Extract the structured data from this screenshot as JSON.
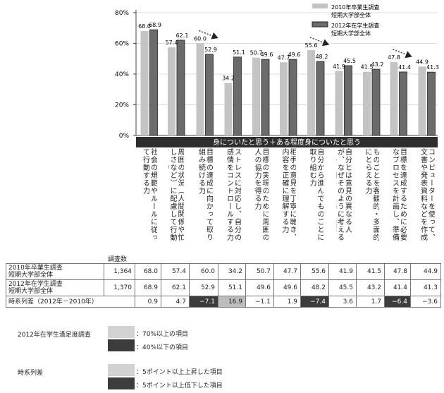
{
  "chart_data": {
    "type": "bar",
    "yticks": [
      "80%",
      "60%",
      "40%",
      "20%",
      "0%"
    ],
    "ylim": [
      0,
      80
    ],
    "band_title": "身についたと思う＋ある程度身についたと思う",
    "categories": [
      "社会の規範やルールに従って行動する力",
      "周囲の状況（人間関係や忙しさなど）に配慮して行動する力",
      "目標の達成に向かって取り組み続ける力",
      "ストレスに対応し、自分の感情をコントロールする力",
      "目標の実現のために周囲の人の協力を得る力",
      "相手の意見を丁寧に聴き、内容を正確に理解する力",
      "自分から進んでものごとに取り組む力",
      "自分とは意見の異なる人が、なぜそのように考えるのかを相手の立場で理解する力",
      "ものごとを客観的・多面的にとらえる力",
      "目標を達成するために必要なプロセスを計画し、準備する力",
      "コンピューターを使って、文書や発表資料などを作成する力"
    ],
    "series": [
      {
        "name": "2010年卒業生調査 短期大学部全体",
        "label_lines": [
          "2010年卒業生調査",
          "短期大学部全体"
        ],
        "color": "#c4c4c4",
        "values": [
          68.0,
          57.4,
          60.0,
          34.2,
          50.7,
          47.7,
          55.6,
          41.9,
          41.5,
          47.8,
          44.9
        ]
      },
      {
        "name": "2012年在学生調査 短期大学部全体",
        "label_lines": [
          "2012年在学生調査",
          "短期大学部全体"
        ],
        "color": "#6b6b6b",
        "values": [
          68.9,
          62.1,
          52.9,
          51.1,
          49.6,
          49.6,
          48.2,
          45.5,
          43.2,
          41.4,
          41.3
        ]
      }
    ],
    "value_labels_a": [
      "68.0",
      "57.4",
      "60.0",
      "34.2",
      "50.7",
      "47.7",
      "55.6",
      "41.9",
      "41.5",
      "47.8",
      "44.9"
    ],
    "value_labels_b": [
      "68.9",
      "62.1",
      "52.9",
      "51.1",
      "49.6",
      "49.6",
      "48.2",
      "45.5",
      "43.2",
      "41.4",
      "41.3"
    ],
    "highlight_a_low": [
      false,
      false,
      false,
      true,
      false,
      false,
      false,
      false,
      false,
      false,
      false
    ],
    "arrow_categories": [
      2,
      6,
      9
    ],
    "table": {
      "count_header": "調査数",
      "rows": [
        {
          "label_lines": [
            "2010年卒業生調査",
            "短期大学部全体"
          ],
          "count": "1,364",
          "values": [
            "68.0",
            "57.4",
            "60.0",
            "34.2",
            "50.7",
            "47.7",
            "55.6",
            "41.9",
            "41.5",
            "47.8",
            "44.9"
          ]
        },
        {
          "label_lines": [
            "2012年在学生調査",
            "短期大学部全体"
          ],
          "count": "1,370",
          "values": [
            "68.9",
            "62.1",
            "52.9",
            "51.1",
            "49.6",
            "49.6",
            "48.2",
            "45.5",
            "43.2",
            "41.4",
            "41.3"
          ]
        }
      ],
      "diff_label": "時系列差（2012年－2010年）",
      "diff": [
        "0.9",
        "4.7",
        "−7.1",
        "16.9",
        "−1.1",
        "1.9",
        "−7.4",
        "3.6",
        "1.7",
        "−6.4",
        "−3.6"
      ],
      "diff_state": [
        "",
        "",
        "down",
        "up",
        "",
        "",
        "down",
        "",
        "",
        "down",
        ""
      ]
    }
  },
  "legend_bottom": {
    "satisfaction_title": "2012年在学生満足度調査",
    "satisfaction_high": "：70%以上の項目",
    "satisfaction_low": "：40%以下の項目",
    "diff_title": "時系列差",
    "diff_up": "：5ポイント以上上昇した項目",
    "diff_down": "：5ポイント以上低下した項目"
  }
}
